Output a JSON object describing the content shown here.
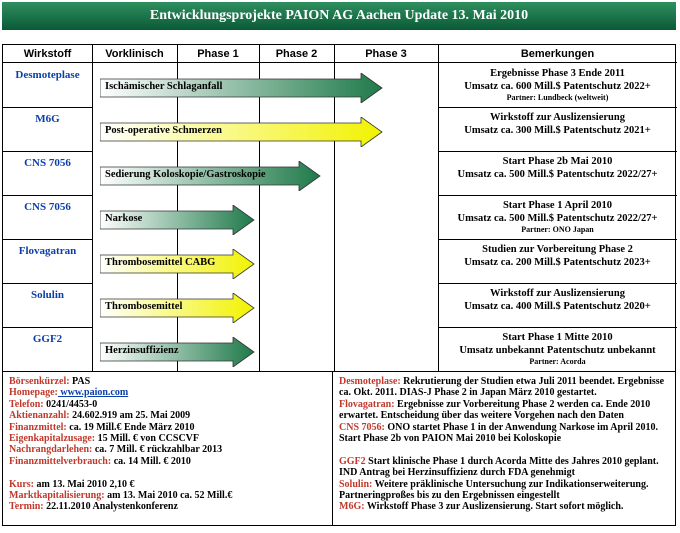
{
  "title": "Entwicklungsprojekte PAION AG Aachen Update 13. Mai 2010",
  "headers": [
    "Wirkstoff",
    "Vorklinisch",
    "Phase 1",
    "Phase 2",
    "Phase 3",
    "Bemerkungen"
  ],
  "rows": [
    {
      "wirkstoff": "Desmoteplase",
      "label": "Ischämischer Schlaganfall",
      "color": "green",
      "phase": 3,
      "remarks": [
        "Ergebnisse Phase 3 Ende 2011",
        "Umsatz ca. 600 Mill.$ Patentschutz 2022+"
      ],
      "partner": "Partner: Lundbeck (weltweit)"
    },
    {
      "wirkstoff": "M6G",
      "label": "Post-operative Schmerzen",
      "color": "yellow",
      "phase": 3,
      "remarks": [
        "Wirkstoff zur Auslizensierung",
        "Umsatz ca. 300 Mill.$ Patentschutz 2021+"
      ],
      "partner": ""
    },
    {
      "wirkstoff": "CNS 7056",
      "label": "Sedierung Koloskopie/Gastroskopie",
      "color": "green",
      "phase": 2,
      "remarks": [
        "Start Phase 2b Mai 2010",
        "Umsatz ca. 500 Mill.$ Patentschutz 2022/27+"
      ],
      "partner": ""
    },
    {
      "wirkstoff": "CNS 7056",
      "label": "Narkose",
      "color": "green",
      "phase": 1,
      "remarks": [
        "Start Phase 1  April 2010",
        "Umsatz ca. 500 Mill.$ Patentschutz 2022/27+"
      ],
      "partner": "Partner: ONO Japan"
    },
    {
      "wirkstoff": "Flovagatran",
      "label": "Thrombosemittel CABG",
      "color": "yellow",
      "phase": 1,
      "remarks": [
        "Studien zur Vorbereitung Phase 2",
        "Umsatz ca. 200 Mill.$  Patentschutz 2023+"
      ],
      "partner": ""
    },
    {
      "wirkstoff": "Solulin",
      "label": "Thrombosemittel",
      "color": "yellow",
      "phase": 1,
      "remarks": [
        "Wirkstoff zur Auslizensierung",
        "Umsatz ca. 400 Mill.$  Patentschutz 2020+"
      ],
      "partner": ""
    },
    {
      "wirkstoff": "GGF2",
      "label": "Herzinsuffizienz",
      "color": "green",
      "phase": 1,
      "remarks": [
        "Start Phase 1 Mitte 2010",
        "Umsatz unbekannt  Patentschutz unbekannt"
      ],
      "partner": "Partner:  Acorda"
    }
  ],
  "left_info": [
    {
      "k": "Börsenkürzel:",
      "v": " PAS",
      "kc": "red"
    },
    {
      "k": "Homepage:",
      "v": " www.paion.com",
      "kc": "red",
      "link": true
    },
    {
      "k": "Telefon:",
      "v": "  0241/4453-0",
      "kc": "red"
    },
    {
      "k": "Aktienanzahl:",
      "v": " 24.602.919 am 25. Mai  2009",
      "kc": "red"
    },
    {
      "k": "Finanzmittel:",
      "v": " ca.  19 Mill.€  Ende März 2010",
      "kc": "red"
    },
    {
      "k": "Eigenkapitalzusage:",
      "v": "  15  Mill. € von  CCSCVF",
      "kc": "red"
    },
    {
      "k": "Nachrangdarlehen:",
      "v": " ca. 7 Mill. € rückzahlbar 2013",
      "kc": "red"
    },
    {
      "k": "Finanzmittelverbrauch:",
      "v": " ca. 14 Mill. € 2010",
      "kc": "red"
    },
    {
      "k": "",
      "v": "",
      "kc": "red"
    },
    {
      "k": "Kurs:",
      "v": "  am  13. Mai 2010    2,10 €",
      "kc": "red"
    },
    {
      "k": "Marktkapitalisierung:",
      "v": "  am  13. Mai 2010  ca.  52 Mill.€",
      "kc": "red"
    },
    {
      "k": "Termin:",
      "v": " 22.11.2010  Analystenkonferenz",
      "kc": "red"
    }
  ],
  "right_info": [
    {
      "k": "Desmoteplase:",
      "v": "  Rekrutierung der Studien etwa Juli 2011 beendet. Ergebnisse ca. Okt.  2011. DIAS-J  Phase 2 in Japan März 2010 gestartet."
    },
    {
      "k": "Flovagatran:",
      "v": "  Ergebnisse zur Vorbereitung Phase 2  werden  ca.  Ende 2010 erwartet. Entscheidung über das weitere Vorgehen nach den Daten"
    },
    {
      "k": "CNS 7056:",
      "v": "  ONO startet Phase 1 in der Anwendung Narkose im April 2010.  Start Phase 2b von PAION Mai 2010 bei  Koloskopie"
    },
    {
      "k": "",
      "v": ""
    },
    {
      "k": "GGF2",
      "v": " Start klinische Phase 1 durch Acorda  Mitte des Jahres 2010 geplant.  IND Antrag bei Herzinsuffizienz durch FDA genehmigt"
    },
    {
      "k": "Solulin:",
      "v": " Weitere präklinische Untersuchung zur Indikationserweiterung. Partneringproßes bis zu den Ergebnissen eingestellt"
    },
    {
      "k": "M6G:",
      "v": " Wirkstoff  Phase 3 zur Auslizensierung. Start sofort möglich."
    }
  ],
  "colors": {
    "green": "#1f7a4a",
    "yellow": "#f2f200",
    "title_bg": "#0b5a37",
    "blue": "#0b3ea8",
    "red": "#c0392b"
  }
}
